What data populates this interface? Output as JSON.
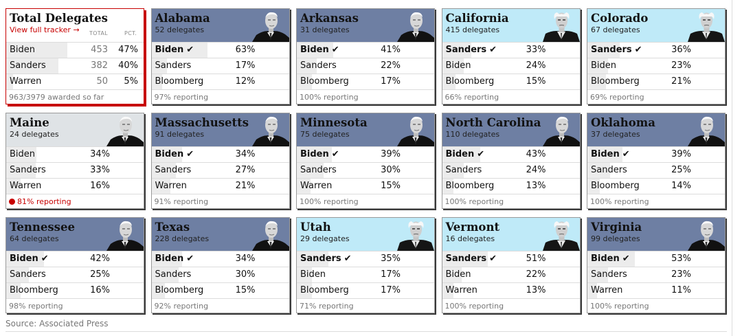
{
  "total": {
    "title": "Total Delegates",
    "link_label": "View full tracker →",
    "col_total": "TOTAL",
    "col_pct": "PCT.",
    "rows": [
      {
        "name": "Biden",
        "count": "453",
        "pct": "47%",
        "share": 47
      },
      {
        "name": "Sanders",
        "count": "382",
        "pct": "40%",
        "share": 40
      },
      {
        "name": "Warren",
        "count": "50",
        "pct": "5%",
        "share": 5
      }
    ],
    "footer": "963/3979 awarded so far"
  },
  "states": [
    {
      "name": "Alabama",
      "delegates": "52 delegates",
      "leader": "biden",
      "rows": [
        {
          "name": "Biden",
          "pct": "63%",
          "winner": true,
          "share": 63
        },
        {
          "name": "Sanders",
          "pct": "17%",
          "share": 17
        },
        {
          "name": "Bloomberg",
          "pct": "12%",
          "share": 12
        }
      ],
      "reporting": "97% reporting",
      "live": false
    },
    {
      "name": "Arkansas",
      "delegates": "31 delegates",
      "leader": "biden",
      "rows": [
        {
          "name": "Biden",
          "pct": "41%",
          "winner": true,
          "share": 41
        },
        {
          "name": "Sanders",
          "pct": "22%",
          "share": 22
        },
        {
          "name": "Bloomberg",
          "pct": "17%",
          "share": 17
        }
      ],
      "reporting": "100% reporting",
      "live": false
    },
    {
      "name": "California",
      "delegates": "415 delegates",
      "leader": "sanders",
      "rows": [
        {
          "name": "Sanders",
          "pct": "33%",
          "winner": true,
          "share": 33
        },
        {
          "name": "Biden",
          "pct": "24%",
          "share": 24
        },
        {
          "name": "Bloomberg",
          "pct": "15%",
          "share": 15
        }
      ],
      "reporting": "66% reporting",
      "live": false
    },
    {
      "name": "Colorado",
      "delegates": "67 delegates",
      "leader": "sanders",
      "rows": [
        {
          "name": "Sanders",
          "pct": "36%",
          "winner": true,
          "share": 36
        },
        {
          "name": "Biden",
          "pct": "23%",
          "share": 23
        },
        {
          "name": "Bloomberg",
          "pct": "21%",
          "share": 21
        }
      ],
      "reporting": "69% reporting",
      "live": false
    },
    {
      "name": "Maine",
      "delegates": "24 delegates",
      "leader": "none",
      "rows": [
        {
          "name": "Biden",
          "pct": "34%",
          "share": 34
        },
        {
          "name": "Sanders",
          "pct": "33%",
          "share": 33
        },
        {
          "name": "Warren",
          "pct": "16%",
          "share": 16
        }
      ],
      "reporting": "81% reporting",
      "live": true
    },
    {
      "name": "Massachusetts",
      "delegates": "91 delegates",
      "leader": "biden",
      "rows": [
        {
          "name": "Biden",
          "pct": "34%",
          "winner": true,
          "share": 34
        },
        {
          "name": "Sanders",
          "pct": "27%",
          "share": 27
        },
        {
          "name": "Warren",
          "pct": "21%",
          "share": 21
        }
      ],
      "reporting": "91% reporting",
      "live": false
    },
    {
      "name": "Minnesota",
      "delegates": "75 delegates",
      "leader": "biden",
      "rows": [
        {
          "name": "Biden",
          "pct": "39%",
          "winner": true,
          "share": 39
        },
        {
          "name": "Sanders",
          "pct": "30%",
          "share": 30
        },
        {
          "name": "Warren",
          "pct": "15%",
          "share": 15
        }
      ],
      "reporting": "100% reporting",
      "live": false
    },
    {
      "name": "North Carolina",
      "delegates": "110 delegates",
      "leader": "biden",
      "rows": [
        {
          "name": "Biden",
          "pct": "43%",
          "winner": true,
          "share": 43
        },
        {
          "name": "Sanders",
          "pct": "24%",
          "share": 24
        },
        {
          "name": "Bloomberg",
          "pct": "13%",
          "share": 13
        }
      ],
      "reporting": "100% reporting",
      "live": false
    },
    {
      "name": "Oklahoma",
      "delegates": "37 delegates",
      "leader": "biden",
      "rows": [
        {
          "name": "Biden",
          "pct": "39%",
          "winner": true,
          "share": 39
        },
        {
          "name": "Sanders",
          "pct": "25%",
          "share": 25
        },
        {
          "name": "Bloomberg",
          "pct": "14%",
          "share": 14
        }
      ],
      "reporting": "100% reporting",
      "live": false
    },
    {
      "name": "Tennessee",
      "delegates": "64 delegates",
      "leader": "biden",
      "rows": [
        {
          "name": "Biden",
          "pct": "42%",
          "winner": true,
          "share": 42
        },
        {
          "name": "Sanders",
          "pct": "25%",
          "share": 25
        },
        {
          "name": "Bloomberg",
          "pct": "16%",
          "share": 16
        }
      ],
      "reporting": "98% reporting",
      "live": false
    },
    {
      "name": "Texas",
      "delegates": "228 delegates",
      "leader": "biden",
      "rows": [
        {
          "name": "Biden",
          "pct": "34%",
          "winner": true,
          "share": 34
        },
        {
          "name": "Sanders",
          "pct": "30%",
          "share": 30
        },
        {
          "name": "Bloomberg",
          "pct": "15%",
          "share": 15
        }
      ],
      "reporting": "92% reporting",
      "live": false
    },
    {
      "name": "Utah",
      "delegates": "29 delegates",
      "leader": "sanders",
      "rows": [
        {
          "name": "Sanders",
          "pct": "35%",
          "winner": true,
          "share": 35
        },
        {
          "name": "Biden",
          "pct": "17%",
          "share": 17
        },
        {
          "name": "Bloomberg",
          "pct": "17%",
          "share": 17
        }
      ],
      "reporting": "71% reporting",
      "live": false
    },
    {
      "name": "Vermont",
      "delegates": "16 delegates",
      "leader": "sanders",
      "rows": [
        {
          "name": "Sanders",
          "pct": "51%",
          "winner": true,
          "share": 51
        },
        {
          "name": "Biden",
          "pct": "22%",
          "share": 22
        },
        {
          "name": "Warren",
          "pct": "13%",
          "share": 13
        }
      ],
      "reporting": "100% reporting",
      "live": false
    },
    {
      "name": "Virginia",
      "delegates": "99 delegates",
      "leader": "biden",
      "rows": [
        {
          "name": "Biden",
          "pct": "53%",
          "winner": true,
          "share": 53
        },
        {
          "name": "Sanders",
          "pct": "23%",
          "share": 23
        },
        {
          "name": "Warren",
          "pct": "11%",
          "share": 11
        }
      ],
      "reporting": "100% reporting",
      "live": false
    }
  ],
  "source": "Source: Associated Press",
  "colors": {
    "biden_header": "#6e7fa3",
    "sanders_header": "#bfeaf8",
    "undecided_header": "#dfe3e6",
    "accent_red": "#c70000"
  }
}
